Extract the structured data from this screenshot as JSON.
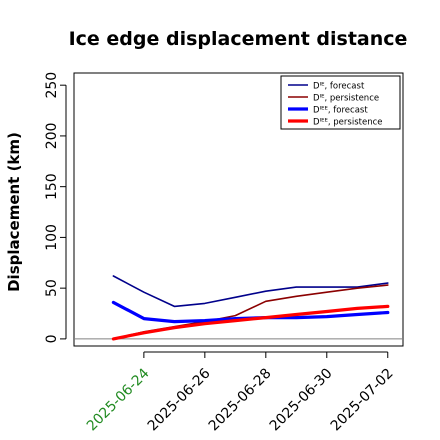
{
  "chart_data": {
    "type": "line",
    "title": "Ice edge displacement distance",
    "ylabel": "Displacement (km)",
    "xlabel": "",
    "ylim": [
      -7,
      262
    ],
    "yticks": [
      0,
      50,
      100,
      150,
      200,
      250
    ],
    "xlim": [
      "2025-06-21 17:00",
      "2025-07-02 12:00"
    ],
    "x": [
      "2025-06-23",
      "2025-06-24",
      "2025-06-25",
      "2025-06-26",
      "2025-06-27",
      "2025-06-28",
      "2025-06-29",
      "2025-06-30",
      "2025-07-01",
      "2025-07-02"
    ],
    "xticks": [
      {
        "label": "2025-06-24",
        "date": "2025-06-24",
        "color": "#228b22"
      },
      {
        "label": "2025-06-26",
        "date": "2025-06-26",
        "color": "#000000"
      },
      {
        "label": "2025-06-28",
        "date": "2025-06-28",
        "color": "#000000"
      },
      {
        "label": "2025-06-30",
        "date": "2025-06-30",
        "color": "#000000"
      },
      {
        "label": "2025-07-02",
        "date": "2025-07-02",
        "color": "#000000"
      }
    ],
    "reference_line": 0,
    "series": [
      {
        "name": "Dᴵᴱ, forecast",
        "color": "#00008b",
        "width": 1.6,
        "values": [
          62,
          46,
          32,
          35,
          41,
          47,
          51,
          51,
          51,
          55
        ]
      },
      {
        "name": "Dᴵᴱ, persistence",
        "color": "#8b0000",
        "width": 1.6,
        "values": [
          0,
          7,
          12,
          17,
          23,
          37,
          42,
          46,
          50,
          53
        ]
      },
      {
        "name": "Dᴵᴱᴱ, forecast",
        "color": "#0000ff",
        "width": 3.2,
        "values": [
          36,
          20,
          17,
          18,
          20,
          21,
          21,
          22,
          24,
          26
        ]
      },
      {
        "name": "Dᴵᴱᴱ, persistence",
        "color": "#ff0000",
        "width": 3.2,
        "values": [
          0,
          6,
          11,
          15,
          18,
          21,
          24,
          27,
          30,
          32
        ]
      }
    ],
    "legend": {
      "placement": "top-right"
    },
    "grid": false
  }
}
